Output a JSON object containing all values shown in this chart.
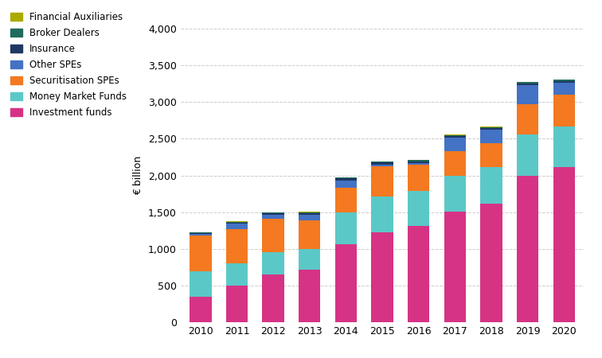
{
  "years": [
    2010,
    2011,
    2012,
    2013,
    2014,
    2015,
    2016,
    2017,
    2018,
    2019,
    2020
  ],
  "series": {
    "Investment funds": [
      350,
      500,
      650,
      720,
      1060,
      1220,
      1310,
      1510,
      1610,
      2000,
      2110
    ],
    "Money Market Funds": [
      340,
      300,
      300,
      280,
      440,
      490,
      480,
      490,
      500,
      560,
      560
    ],
    "Securitisation SPEs": [
      490,
      470,
      460,
      390,
      330,
      420,
      360,
      330,
      330,
      410,
      430
    ],
    "Other SPEs": [
      25,
      70,
      55,
      75,
      100,
      20,
      20,
      180,
      180,
      260,
      160
    ],
    "Insurance": [
      10,
      20,
      20,
      25,
      30,
      25,
      25,
      25,
      25,
      25,
      25
    ],
    "Broker Dealers": [
      5,
      10,
      10,
      10,
      10,
      15,
      15,
      15,
      15,
      15,
      20
    ],
    "Financial Auxiliaries": [
      5,
      5,
      5,
      5,
      5,
      5,
      5,
      5,
      5,
      5,
      5
    ]
  },
  "colors": {
    "Investment funds": "#d63384",
    "Money Market Funds": "#5bc8c8",
    "Securitisation SPEs": "#f47920",
    "Other SPEs": "#4472c4",
    "Insurance": "#1f3864",
    "Broker Dealers": "#1f6b5c",
    "Financial Auxiliaries": "#aaaa00"
  },
  "ylabel": "€ billion",
  "ylim": [
    0,
    4000
  ],
  "yticks": [
    0,
    500,
    1000,
    1500,
    2000,
    2500,
    3000,
    3500,
    4000
  ],
  "background_color": "#ffffff",
  "grid_color": "#cccccc",
  "legend_order": [
    "Financial Auxiliaries",
    "Broker Dealers",
    "Insurance",
    "Other SPEs",
    "Securitisation SPEs",
    "Money Market Funds",
    "Investment funds"
  ]
}
